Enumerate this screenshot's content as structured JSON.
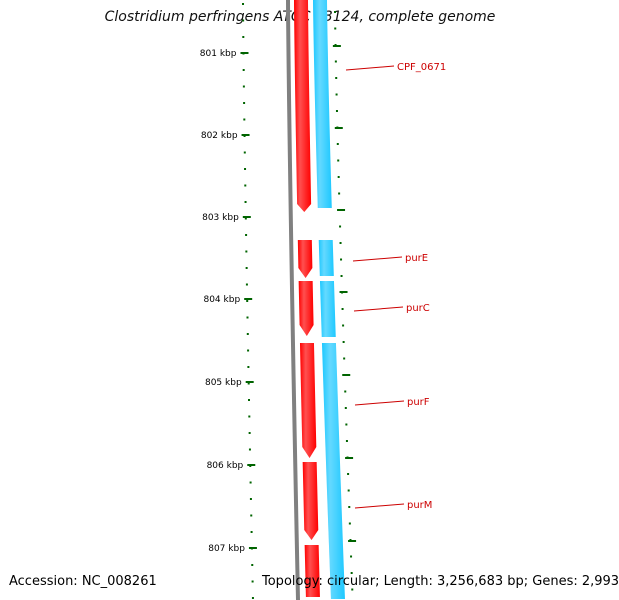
{
  "title": "Clostridium perfringens ATCC 13124, complete genome",
  "footer": {
    "accession": "Accession: NC_008261",
    "topology": "Topology: circular; Length: 3,256,683 bp; Genes: 2,993"
  },
  "ruler": {
    "ticks": [
      "801 kbp",
      "802 kbp",
      "803 kbp",
      "804 kbp",
      "805 kbp",
      "806 kbp",
      "807 kbp"
    ]
  },
  "genes": [
    {
      "label": "CPF_0671"
    },
    {
      "label": "purE"
    },
    {
      "label": "purC"
    },
    {
      "label": "purF"
    },
    {
      "label": "purM"
    }
  ],
  "colors": {
    "forward_strand": "#ff0000",
    "reverse_strand": "#1ec8ff",
    "backbone": "#808080",
    "ruler": "#006400",
    "gene_label": "#cc0000"
  }
}
